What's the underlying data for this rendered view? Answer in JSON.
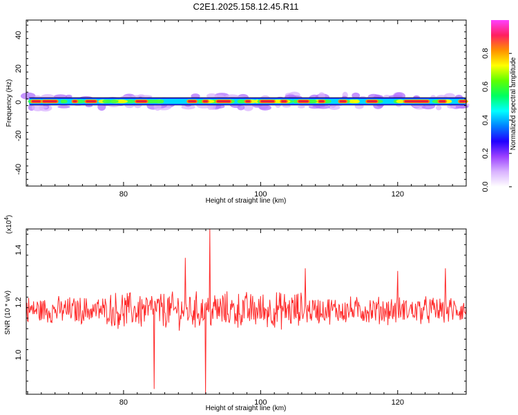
{
  "title": "C2E1.2025.158.12.45.R11",
  "chart_data": [
    {
      "type": "heatmap",
      "xlabel": "Height of straight line (km)",
      "ylabel": "Frequency (Hz)",
      "xlim": [
        65.8,
        130
      ],
      "ylim": [
        -50,
        49
      ],
      "x_ticks": [
        80,
        100,
        120
      ],
      "y_ticks": [
        -40,
        -20,
        0,
        20,
        40
      ],
      "grid": false,
      "colorbar": {
        "label": "Normalized spectral amplitude",
        "range": [
          0,
          1
        ],
        "ticks": [
          "0.0",
          "0.2",
          "0.4",
          "0.6",
          "0.8"
        ],
        "colors": [
          "#ffffff",
          "#d9b3ff",
          "#9b40ff",
          "#2000ff",
          "#0080ff",
          "#00ffff",
          "#00ff60",
          "#60ff00",
          "#ffff00",
          "#ff9000",
          "#ff2060",
          "#ff40ff"
        ]
      },
      "band_center_hz": 0.5,
      "band_halfwidth_hz": 2.5,
      "peak_segments_km": [
        [
          66.6,
          67.9
        ],
        [
          68.2,
          70.3
        ],
        [
          72.6,
          73.2
        ],
        [
          74.5,
          76.0
        ],
        [
          81.8,
          83.4
        ],
        [
          89.4,
          90.6
        ],
        [
          91.6,
          92.3
        ],
        [
          93.6,
          95.6
        ],
        [
          97.8,
          98.5
        ],
        [
          100.0,
          102.0
        ],
        [
          103.0,
          103.8
        ],
        [
          105.5,
          107.0
        ],
        [
          108.5,
          109.3
        ],
        [
          111.5,
          112.5
        ],
        [
          115.5,
          117.0
        ],
        [
          121.0,
          124.5
        ],
        [
          126.0,
          127.0
        ],
        [
          129.0,
          130.0
        ]
      ]
    },
    {
      "type": "line",
      "xlabel": "Height of straight line (km)",
      "ylabel": "SNR (10 * v/v)",
      "y_multiplier": "(x10",
      "y_multiplier_exp": "4",
      "y_multiplier_close": ")",
      "xlim": [
        65.8,
        130
      ],
      "ylim": [
        0.85,
        1.48
      ],
      "x_ticks": [
        80,
        100,
        120
      ],
      "y_ticks": [
        "1.0",
        "1.2",
        "1.4"
      ],
      "grid": false,
      "series": [
        {
          "color": "#ff2a2a",
          "mean": 1.17,
          "spread": 0.045,
          "spikes": [
            [
              84.5,
              0.87
            ],
            [
              89.0,
              1.37
            ],
            [
              92.0,
              0.85
            ],
            [
              92.6,
              1.48
            ],
            [
              106.5,
              1.33
            ],
            [
              120.0,
              1.32
            ],
            [
              127.0,
              1.33
            ]
          ]
        }
      ]
    }
  ]
}
